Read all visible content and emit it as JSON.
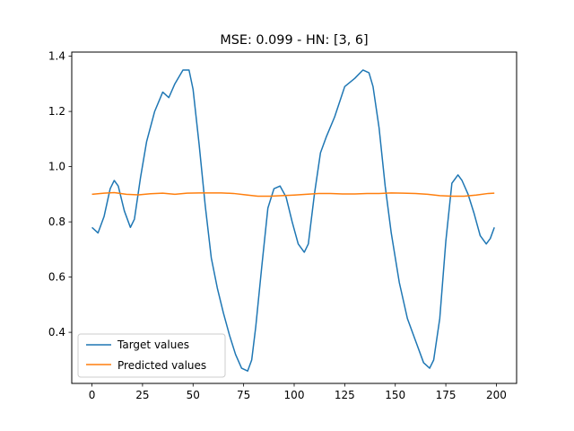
{
  "chart_data": {
    "type": "line",
    "title": "MSE: 0.099 - HN: [3, 6]",
    "xlabel": "",
    "ylabel": "",
    "xlim": [
      -10,
      210
    ],
    "ylim": [
      0.215,
      1.415
    ],
    "x_ticks": [
      0,
      25,
      50,
      75,
      100,
      125,
      150,
      175,
      200
    ],
    "y_ticks": [
      0.4,
      0.6,
      0.8,
      1.0,
      1.2,
      1.4
    ],
    "x_tick_labels": [
      "0",
      "25",
      "50",
      "75",
      "100",
      "125",
      "150",
      "175",
      "200"
    ],
    "y_tick_labels": [
      "0.4",
      "0.6",
      "0.8",
      "1.0",
      "1.2",
      "1.4"
    ],
    "grid": false,
    "legend_position": "lower-left",
    "series": [
      {
        "name": "Target values",
        "color": "#1f77b4",
        "x": [
          0,
          3,
          6,
          9,
          11,
          13,
          16,
          19,
          21,
          24,
          27,
          31,
          35,
          38,
          41,
          45,
          48,
          50,
          53,
          56,
          59,
          62,
          65,
          68,
          71,
          74,
          77,
          79,
          81,
          84,
          87,
          90,
          93,
          96,
          99,
          102,
          105,
          107,
          110,
          113,
          116,
          120,
          125,
          130,
          134,
          137,
          139,
          142,
          145,
          148,
          152,
          156,
          160,
          164,
          167,
          169,
          172,
          175,
          178,
          181,
          183,
          186,
          189,
          192,
          195,
          197,
          199
        ],
        "values": [
          0.78,
          0.76,
          0.82,
          0.92,
          0.95,
          0.93,
          0.84,
          0.78,
          0.81,
          0.96,
          1.09,
          1.2,
          1.27,
          1.25,
          1.3,
          1.35,
          1.35,
          1.28,
          1.08,
          0.86,
          0.67,
          0.56,
          0.47,
          0.39,
          0.32,
          0.27,
          0.26,
          0.3,
          0.42,
          0.64,
          0.85,
          0.92,
          0.93,
          0.89,
          0.8,
          0.72,
          0.69,
          0.72,
          0.9,
          1.05,
          1.11,
          1.18,
          1.29,
          1.32,
          1.35,
          1.34,
          1.29,
          1.14,
          0.93,
          0.76,
          0.58,
          0.45,
          0.37,
          0.29,
          0.27,
          0.3,
          0.45,
          0.73,
          0.94,
          0.97,
          0.95,
          0.9,
          0.83,
          0.75,
          0.72,
          0.74,
          0.78
        ]
      },
      {
        "name": "Predicted values",
        "color": "#ff7f0e",
        "x": [
          0,
          6,
          11,
          17,
          23,
          29,
          35,
          41,
          47,
          53,
          59,
          64,
          70,
          76,
          82,
          88,
          94,
          100,
          106,
          112,
          118,
          124,
          130,
          136,
          142,
          148,
          154,
          160,
          166,
          172,
          178,
          184,
          190,
          196,
          199
        ],
        "values": [
          0.9,
          0.904,
          0.906,
          0.9,
          0.898,
          0.902,
          0.904,
          0.9,
          0.904,
          0.905,
          0.905,
          0.905,
          0.903,
          0.898,
          0.893,
          0.893,
          0.895,
          0.897,
          0.9,
          0.903,
          0.903,
          0.901,
          0.901,
          0.903,
          0.903,
          0.905,
          0.904,
          0.903,
          0.9,
          0.895,
          0.893,
          0.893,
          0.897,
          0.903,
          0.904
        ]
      }
    ]
  }
}
